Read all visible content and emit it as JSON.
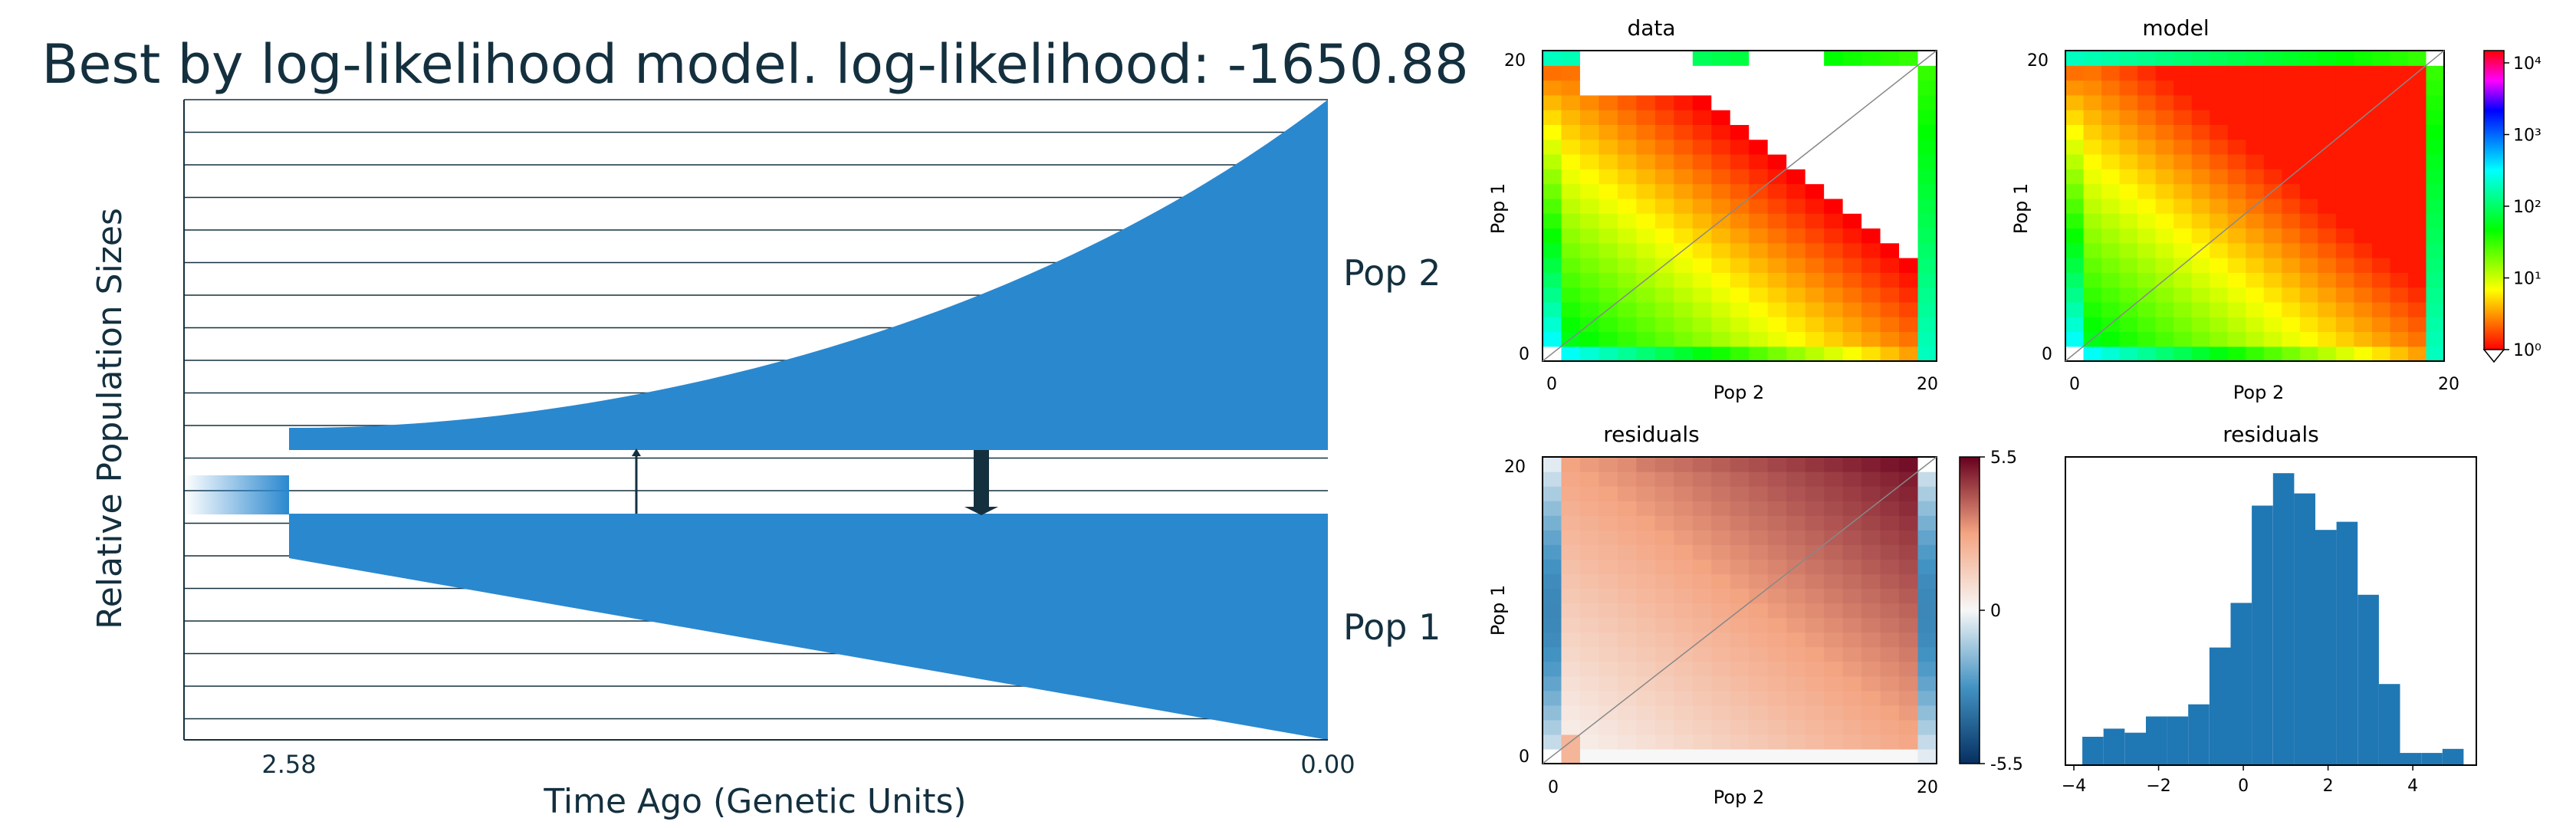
{
  "demography": {
    "title": "Best by log-likelihood model. log-likelihood: -1650.88",
    "ylabel": "Relative Population Sizes",
    "xlabel": "Time Ago (Genetic Units)",
    "pop2_label": "Pop 2",
    "pop1_label": "Pop 1",
    "tick_split": "2.58",
    "tick_present": "0.00"
  },
  "panels": {
    "data_title": "data",
    "model_title": "model",
    "residuals_title": "residuals",
    "hist_title": "residuals",
    "axis_x": "Pop 2",
    "axis_y": "Pop 1",
    "tick_min": "0",
    "tick_max": "20",
    "colorbar_ticks": [
      "10⁰",
      "10¹",
      "10²",
      "10³",
      "10⁴"
    ],
    "resid_colorbar_ticks": [
      "5.5",
      "0",
      "-5.5"
    ]
  },
  "chart_data": [
    {
      "type": "area",
      "title": "Best by log-likelihood model. log-likelihood: -1650.88",
      "xlabel": "Time Ago (Genetic Units)",
      "ylabel": "Relative Population Sizes",
      "split_time": 2.58,
      "present_time": 0.0,
      "series": [
        {
          "name": "Pop 2",
          "growth": "exponential"
        },
        {
          "name": "Pop 1",
          "growth": "exponential"
        }
      ],
      "color": "#2a88cf"
    },
    {
      "type": "heatmap",
      "title": "data",
      "xlabel": "Pop 2",
      "ylabel": "Pop 1",
      "xlim": [
        0,
        20
      ],
      "ylim": [
        0,
        20
      ],
      "colorscale": "log",
      "colorbar_range": [
        1,
        10000
      ]
    },
    {
      "type": "heatmap",
      "title": "model",
      "xlabel": "Pop 2",
      "ylabel": "Pop 1",
      "xlim": [
        0,
        20
      ],
      "ylim": [
        0,
        20
      ],
      "colorscale": "log",
      "colorbar_range": [
        1,
        10000
      ]
    },
    {
      "type": "heatmap",
      "title": "residuals",
      "xlabel": "Pop 2",
      "ylabel": "Pop 1",
      "xlim": [
        0,
        20
      ],
      "ylim": [
        0,
        20
      ],
      "colorbar_range": [
        -5.5,
        5.5
      ]
    },
    {
      "type": "bar",
      "title": "residuals",
      "bin_edges": [
        -3.8,
        -3.3,
        -2.8,
        -2.3,
        -1.8,
        -1.3,
        -0.8,
        -0.3,
        0.2,
        0.7,
        1.2,
        1.7,
        2.2,
        2.7,
        3.2,
        3.7,
        4.2,
        4.7,
        5.2
      ],
      "values": [
        7,
        9,
        8,
        12,
        12,
        15,
        29,
        40,
        64,
        72,
        67,
        58,
        60,
        42,
        20,
        3,
        3,
        4,
        1
      ],
      "xticks": [
        -4,
        -2,
        0,
        2,
        4
      ],
      "color": "#1f77b4"
    }
  ]
}
